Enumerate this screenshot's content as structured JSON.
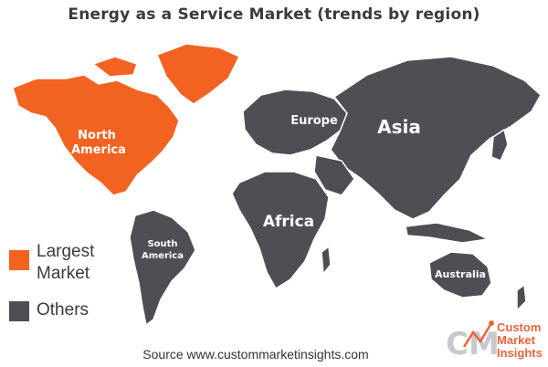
{
  "title": "Energy as a Service Market (trends by region)",
  "colors": {
    "largest": "#f26322",
    "others": "#4d4f54"
  },
  "regions": [
    {
      "id": "north-america",
      "label_line1": "North",
      "label_line2": "America",
      "category": "largest"
    },
    {
      "id": "greenland",
      "label_line1": "",
      "label_line2": "",
      "category": "largest"
    },
    {
      "id": "south-america",
      "label_line1": "South",
      "label_line2": "America",
      "category": "others"
    },
    {
      "id": "europe",
      "label_line1": "Europe",
      "label_line2": "",
      "category": "others"
    },
    {
      "id": "asia",
      "label_line1": "Asia",
      "label_line2": "",
      "category": "others"
    },
    {
      "id": "africa",
      "label_line1": "Africa",
      "label_line2": "",
      "category": "others"
    },
    {
      "id": "australia",
      "label_line1": "Australia",
      "label_line2": "",
      "category": "others"
    }
  ],
  "legend": {
    "largest_line1": "Largest",
    "largest_line2": "Market",
    "others": "Others"
  },
  "source": "Source www.custommarketinsights.com",
  "logo": {
    "mark": "CMI",
    "line1": "Custom",
    "line2": "Market",
    "line3": "Insights"
  }
}
